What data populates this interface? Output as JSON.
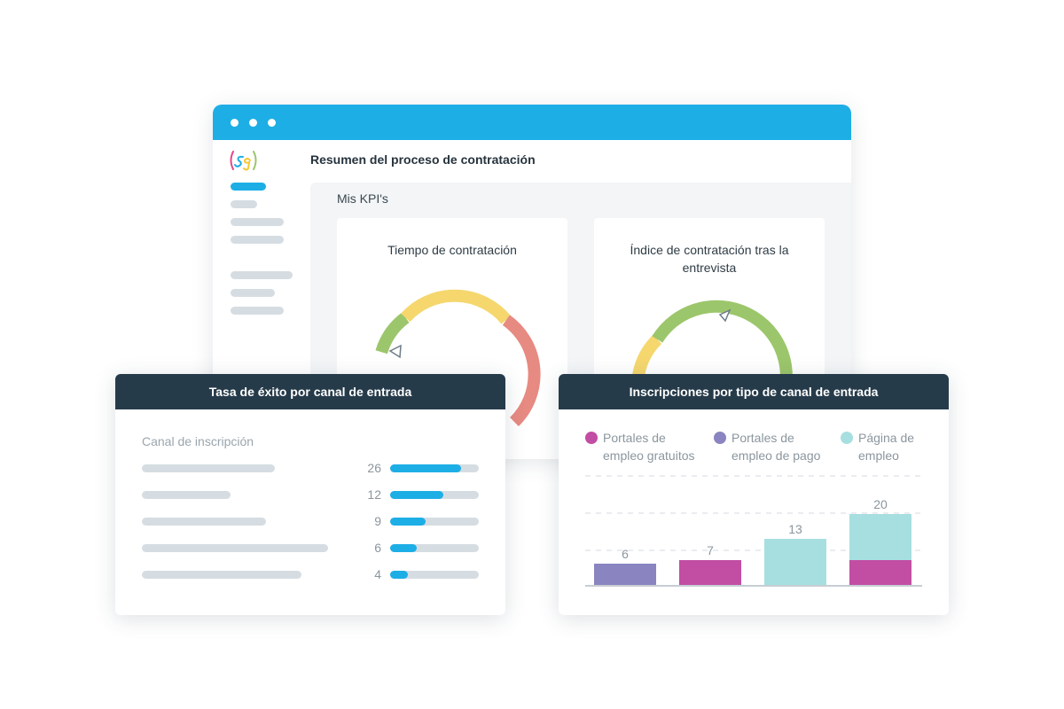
{
  "colors": {
    "accent": "#1eaee6",
    "header_dark": "#263b4a",
    "gauge_green": "#9cc66b",
    "gauge_yellow": "#f5d76e",
    "gauge_red": "#e78a82",
    "bar_free": "#c14ea3",
    "bar_paid": "#8a85c0",
    "bar_page": "#a7dfe0"
  },
  "window": {
    "title": "Resumen del proceso de contratación",
    "kpi_section": "Mis KPI's"
  },
  "kpis": [
    {
      "title": "Tiempo de contratación"
    },
    {
      "title": "Índice de contratación tras la entrevista"
    }
  ],
  "success_card": {
    "title": "Tasa de éxito por canal de entrada",
    "column_label": "Canal de inscripción",
    "rows": [
      {
        "value": "26"
      },
      {
        "value": "12"
      },
      {
        "value": "9"
      },
      {
        "value": "6"
      },
      {
        "value": "4"
      }
    ]
  },
  "chart_card": {
    "title": "Inscripciones por tipo de canal de entrada"
  },
  "chart_data": {
    "type": "bar",
    "stacked": true,
    "legend": "top",
    "grid": true,
    "categories": [
      "",
      "",
      "",
      ""
    ],
    "series": [
      {
        "name": "Portales de empleo gratuitos",
        "color": "#c14ea3",
        "values": [
          0,
          7,
          0,
          7
        ]
      },
      {
        "name": "Portales de empleo de pago",
        "color": "#8a85c0",
        "values": [
          6,
          0,
          0,
          0
        ]
      },
      {
        "name": "Página de empleo",
        "color": "#a7dfe0",
        "values": [
          0,
          0,
          13,
          13
        ]
      }
    ],
    "totals": [
      "6",
      "7",
      "13",
      "20"
    ],
    "ylim": [
      0,
      20
    ]
  }
}
